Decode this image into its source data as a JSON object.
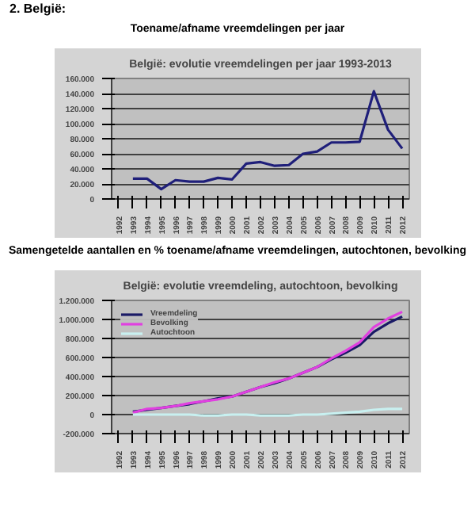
{
  "chart_data": [
    {
      "type": "line",
      "annotations": [
        "2. België:"
      ],
      "title": "Toename/afname vreemdelingen per jaar",
      "subtitle": "België: evolutie vreemdelingen per jaar 1993-2013",
      "categories": [
        "1992",
        "1993",
        "1994",
        "1995",
        "1996",
        "1997",
        "1998",
        "1999",
        "2000",
        "2001",
        "2002",
        "2003",
        "2004",
        "2005",
        "2006",
        "2007",
        "2008",
        "2009",
        "2010",
        "2011",
        "2012"
      ],
      "values": [
        null,
        27000,
        27000,
        13000,
        25000,
        23000,
        23000,
        28000,
        26000,
        47000,
        49000,
        44000,
        45000,
        60000,
        63000,
        75000,
        75000,
        76000,
        143000,
        92000,
        67000
      ],
      "color": "#1f1f7a",
      "ylim": [
        0,
        160000
      ],
      "yticks": [
        {
          "value": 0,
          "label": "0"
        },
        {
          "value": 20000,
          "label": "20.000"
        },
        {
          "value": 40000,
          "label": "40.000"
        },
        {
          "value": 60000,
          "label": "60.000"
        },
        {
          "value": 80000,
          "label": "80.000"
        },
        {
          "value": 100000,
          "label": "100.000"
        },
        {
          "value": 120000,
          "label": "120.000"
        },
        {
          "value": 140000,
          "label": "140.000"
        },
        {
          "value": 160000,
          "label": "160.000"
        }
      ],
      "grid": "y"
    },
    {
      "type": "line",
      "title": "Samengetelde aantallen en % toename/afname vreemdelingen, autochtonen, bevolking",
      "subtitle": "België: evolutie vreemdeling, autochtoon, bevolking",
      "categories": [
        "1992",
        "1993",
        "1994",
        "1995",
        "1996",
        "1997",
        "1998",
        "1999",
        "2000",
        "2001",
        "2002",
        "2003",
        "2004",
        "2005",
        "2006",
        "2007",
        "2008",
        "2009",
        "2010",
        "2011",
        "2012"
      ],
      "series": [
        {
          "name": "Vreemdeling",
          "color": "#1a1a66",
          "values": [
            null,
            30000,
            50000,
            70000,
            90000,
            110000,
            140000,
            170000,
            190000,
            240000,
            290000,
            330000,
            380000,
            440000,
            500000,
            580000,
            650000,
            730000,
            870000,
            960000,
            1030000
          ]
        },
        {
          "name": "Bevolking",
          "color": "#e040e0",
          "values": [
            null,
            20000,
            60000,
            70000,
            90000,
            120000,
            140000,
            160000,
            190000,
            240000,
            290000,
            340000,
            380000,
            440000,
            500000,
            590000,
            670000,
            760000,
            920000,
            1010000,
            1080000
          ]
        },
        {
          "name": "Autochtoon",
          "color": "#c8f0f0",
          "values": [
            null,
            0,
            0,
            0,
            0,
            0,
            -10000,
            -10000,
            0,
            0,
            -10000,
            -10000,
            -10000,
            0,
            0,
            10000,
            20000,
            30000,
            50000,
            60000,
            60000
          ]
        }
      ],
      "legend": "top left",
      "ylim": [
        -200000,
        1200000
      ],
      "yticks": [
        {
          "value": -200000,
          "label": "-200.000"
        },
        {
          "value": 0,
          "label": "0"
        },
        {
          "value": 200000,
          "label": "200.000"
        },
        {
          "value": 400000,
          "label": "400.000"
        },
        {
          "value": 600000,
          "label": "600.000"
        },
        {
          "value": 800000,
          "label": "800.000"
        },
        {
          "value": 1000000,
          "label": "1.000.000"
        },
        {
          "value": 1200000,
          "label": "1.200.000"
        }
      ],
      "grid": "y"
    }
  ]
}
